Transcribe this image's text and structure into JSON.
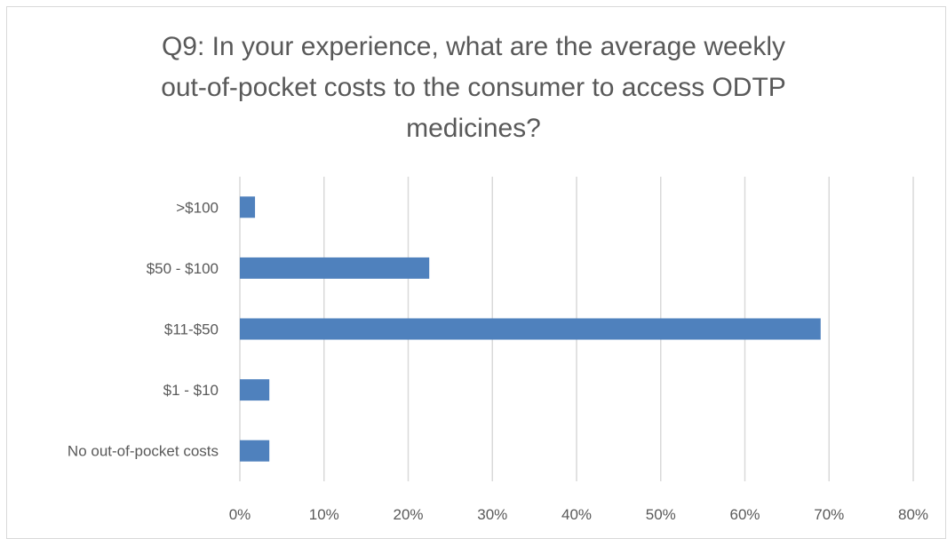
{
  "chart_data": {
    "type": "bar",
    "orientation": "horizontal",
    "title_lines": [
      "Q9: In your experience, what are the average weekly",
      "out-of-pocket costs to the consumer to access ODTP",
      "medicines?"
    ],
    "categories": [
      ">$100",
      "$50 - $100",
      "$11-$50",
      "$1 - $10",
      "No out-of-pocket costs"
    ],
    "values": [
      1.8,
      22.5,
      69.0,
      3.5,
      3.5
    ],
    "xlim": [
      0,
      80
    ],
    "x_ticks": [
      0,
      10,
      20,
      30,
      40,
      50,
      60,
      70,
      80
    ],
    "x_tick_labels": [
      "0%",
      "10%",
      "20%",
      "30%",
      "40%",
      "50%",
      "60%",
      "70%",
      "80%"
    ],
    "grid": "vertical",
    "legend": "none",
    "bar_color": "#4f81bd",
    "grid_color": "#d9d9d9"
  }
}
